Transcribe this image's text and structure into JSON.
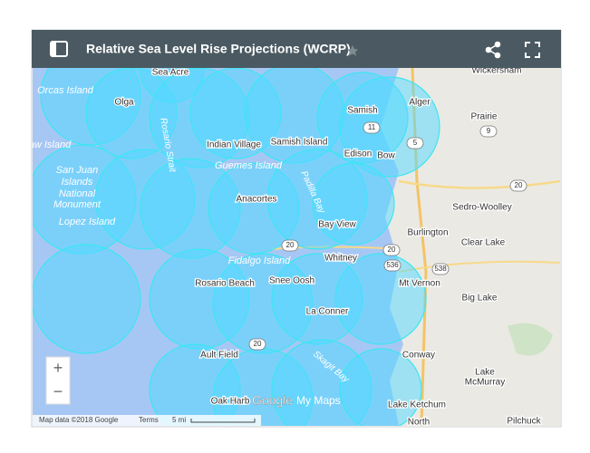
{
  "header": {
    "title": "Relative Sea Level Rise Projections (WCRP)"
  },
  "places": [
    "Sea Acre",
    "Wickersham",
    "Orcas Island",
    "Olga",
    "Alger",
    "Samish",
    "Prairie",
    "Rosario Strait",
    "Indian Village",
    "Samish Island",
    "aw Island",
    "Edison",
    "Bow",
    "Guemes Island",
    "Padilla Bay",
    "San Juan",
    "Islands",
    "National",
    "Monument",
    "Sedro-Woolley",
    "Anacortes",
    "Lopez Island",
    "Bay View",
    "Burlington",
    "Clear Lake",
    "Fidalgo Island",
    "Whitney",
    "Rosario Beach",
    "Snee Oosh",
    "Mt Vernon",
    "Big Lake",
    "La Conner",
    "Ault Field",
    "Skagit Bay",
    "Conway",
    "Lake",
    "McMurray",
    "Oak Harb",
    "Lake Ketchum",
    "North",
    "Pilchuck"
  ],
  "road_shields": [
    "11",
    "9",
    "5",
    "20",
    "20",
    "20",
    "536",
    "538",
    "20"
  ],
  "controls": {
    "zoom_in": "+",
    "zoom_out": "−"
  },
  "footer": {
    "map_data": "Map data ©2018 Google",
    "terms": "Terms",
    "scale": "5 mi",
    "logo_google": "Google",
    "logo_mymaps": "My Maps"
  }
}
